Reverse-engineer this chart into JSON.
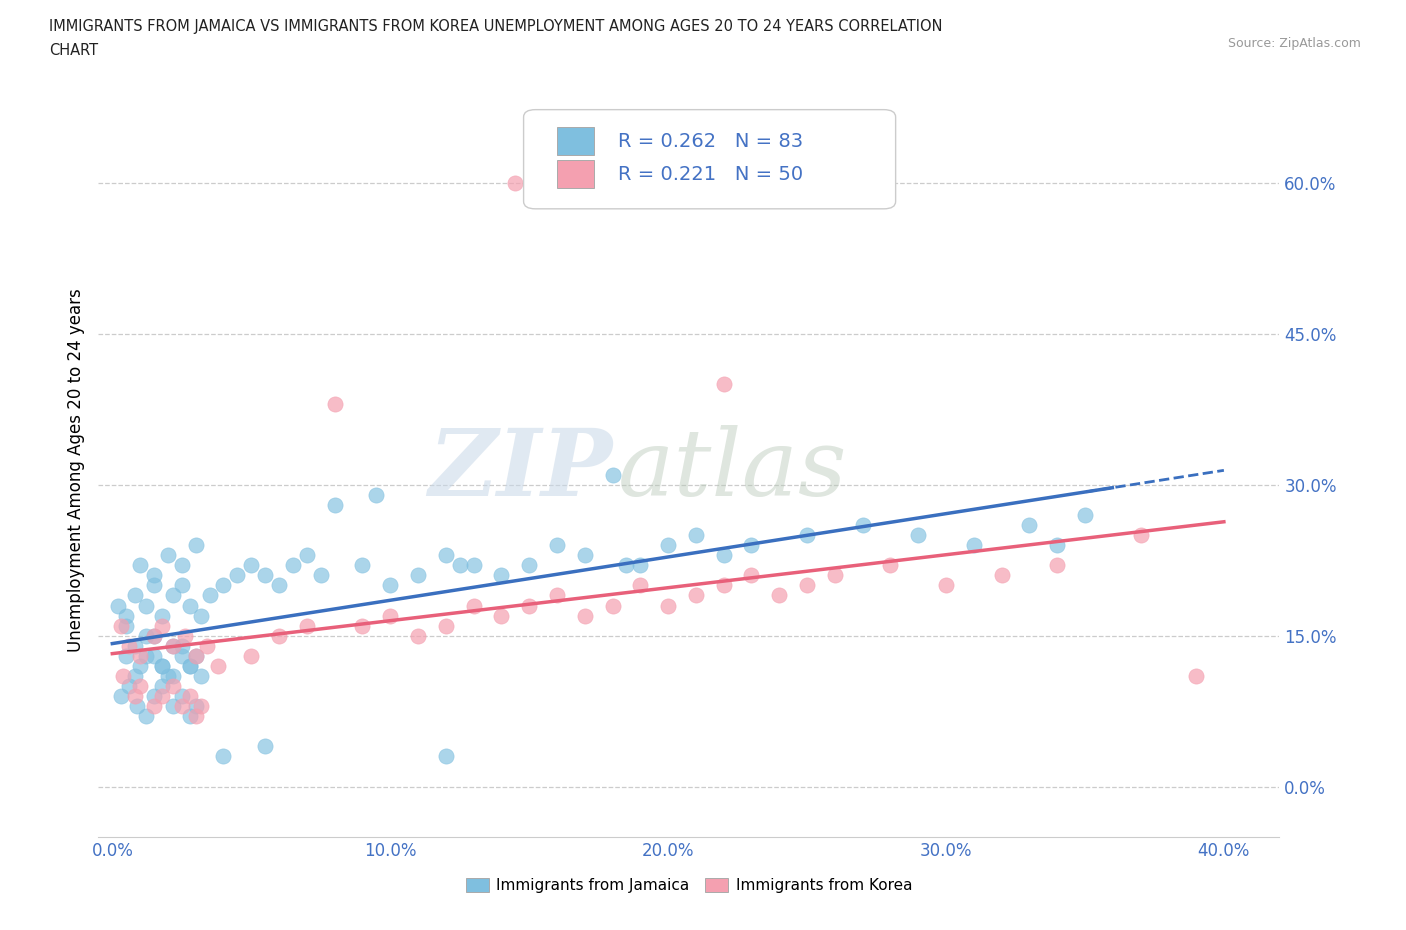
{
  "title_line1": "IMMIGRANTS FROM JAMAICA VS IMMIGRANTS FROM KOREA UNEMPLOYMENT AMONG AGES 20 TO 24 YEARS CORRELATION",
  "title_line2": "CHART",
  "source": "Source: ZipAtlas.com",
  "ylabel": "Unemployment Among Ages 20 to 24 years",
  "xlim": [
    -0.005,
    0.42
  ],
  "ylim": [
    -0.05,
    0.68
  ],
  "yticks": [
    0.0,
    0.15,
    0.3,
    0.45,
    0.6
  ],
  "ytick_labels": [
    "0.0%",
    "15.0%",
    "30.0%",
    "45.0%",
    "60.0%"
  ],
  "xticks": [
    0.0,
    0.1,
    0.2,
    0.3,
    0.4
  ],
  "xtick_labels": [
    "0.0%",
    "10.0%",
    "20.0%",
    "30.0%",
    "40.0%"
  ],
  "jamaica_color": "#7fbfdf",
  "korea_color": "#f4a0b0",
  "jamaica_line_color": "#3a6fbf",
  "korea_line_color": "#e8607a",
  "jamaica_R": 0.262,
  "jamaica_N": 83,
  "korea_R": 0.221,
  "korea_N": 50,
  "watermark_zip": "ZIP",
  "watermark_atlas": "atlas",
  "background_color": "#ffffff",
  "grid_color": "#cccccc",
  "axis_color": "#4472c4",
  "legend_text_color": "#4472c4",
  "title_color": "#222222",
  "source_color": "#999999",
  "jamaica_scatter_x": [
    0.005,
    0.008,
    0.01,
    0.012,
    0.015,
    0.018,
    0.02,
    0.022,
    0.025,
    0.028,
    0.005,
    0.008,
    0.012,
    0.015,
    0.018,
    0.022,
    0.025,
    0.028,
    0.03,
    0.032,
    0.003,
    0.006,
    0.009,
    0.012,
    0.015,
    0.018,
    0.022,
    0.025,
    0.028,
    0.03,
    0.002,
    0.005,
    0.008,
    0.012,
    0.015,
    0.018,
    0.022,
    0.025,
    0.028,
    0.032,
    0.01,
    0.015,
    0.02,
    0.025,
    0.03,
    0.035,
    0.04,
    0.045,
    0.05,
    0.055,
    0.06,
    0.065,
    0.07,
    0.075,
    0.08,
    0.09,
    0.1,
    0.11,
    0.12,
    0.13,
    0.14,
    0.15,
    0.16,
    0.17,
    0.18,
    0.19,
    0.2,
    0.21,
    0.22,
    0.23,
    0.25,
    0.27,
    0.29,
    0.31,
    0.33,
    0.35,
    0.125,
    0.095,
    0.185,
    0.34,
    0.04,
    0.055,
    0.12
  ],
  "jamaica_scatter_y": [
    0.13,
    0.14,
    0.12,
    0.15,
    0.13,
    0.12,
    0.11,
    0.14,
    0.13,
    0.12,
    0.16,
    0.11,
    0.13,
    0.15,
    0.12,
    0.11,
    0.14,
    0.12,
    0.13,
    0.11,
    0.09,
    0.1,
    0.08,
    0.07,
    0.09,
    0.1,
    0.08,
    0.09,
    0.07,
    0.08,
    0.18,
    0.17,
    0.19,
    0.18,
    0.2,
    0.17,
    0.19,
    0.2,
    0.18,
    0.17,
    0.22,
    0.21,
    0.23,
    0.22,
    0.24,
    0.19,
    0.2,
    0.21,
    0.22,
    0.21,
    0.2,
    0.22,
    0.23,
    0.21,
    0.28,
    0.22,
    0.2,
    0.21,
    0.23,
    0.22,
    0.21,
    0.22,
    0.24,
    0.23,
    0.31,
    0.22,
    0.24,
    0.25,
    0.23,
    0.24,
    0.25,
    0.26,
    0.25,
    0.24,
    0.26,
    0.27,
    0.22,
    0.29,
    0.22,
    0.24,
    0.03,
    0.04,
    0.03
  ],
  "korea_scatter_x": [
    0.004,
    0.008,
    0.01,
    0.015,
    0.018,
    0.022,
    0.025,
    0.028,
    0.03,
    0.032,
    0.003,
    0.006,
    0.01,
    0.015,
    0.018,
    0.022,
    0.026,
    0.03,
    0.034,
    0.038,
    0.05,
    0.06,
    0.07,
    0.08,
    0.09,
    0.1,
    0.11,
    0.12,
    0.13,
    0.14,
    0.15,
    0.16,
    0.17,
    0.18,
    0.19,
    0.2,
    0.21,
    0.22,
    0.23,
    0.24,
    0.25,
    0.26,
    0.28,
    0.3,
    0.32,
    0.34,
    0.37,
    0.39,
    0.145,
    0.22
  ],
  "korea_scatter_y": [
    0.11,
    0.09,
    0.1,
    0.08,
    0.09,
    0.1,
    0.08,
    0.09,
    0.07,
    0.08,
    0.16,
    0.14,
    0.13,
    0.15,
    0.16,
    0.14,
    0.15,
    0.13,
    0.14,
    0.12,
    0.13,
    0.15,
    0.16,
    0.38,
    0.16,
    0.17,
    0.15,
    0.16,
    0.18,
    0.17,
    0.18,
    0.19,
    0.17,
    0.18,
    0.2,
    0.18,
    0.19,
    0.2,
    0.21,
    0.19,
    0.2,
    0.21,
    0.22,
    0.2,
    0.21,
    0.22,
    0.25,
    0.11,
    0.6,
    0.4
  ]
}
